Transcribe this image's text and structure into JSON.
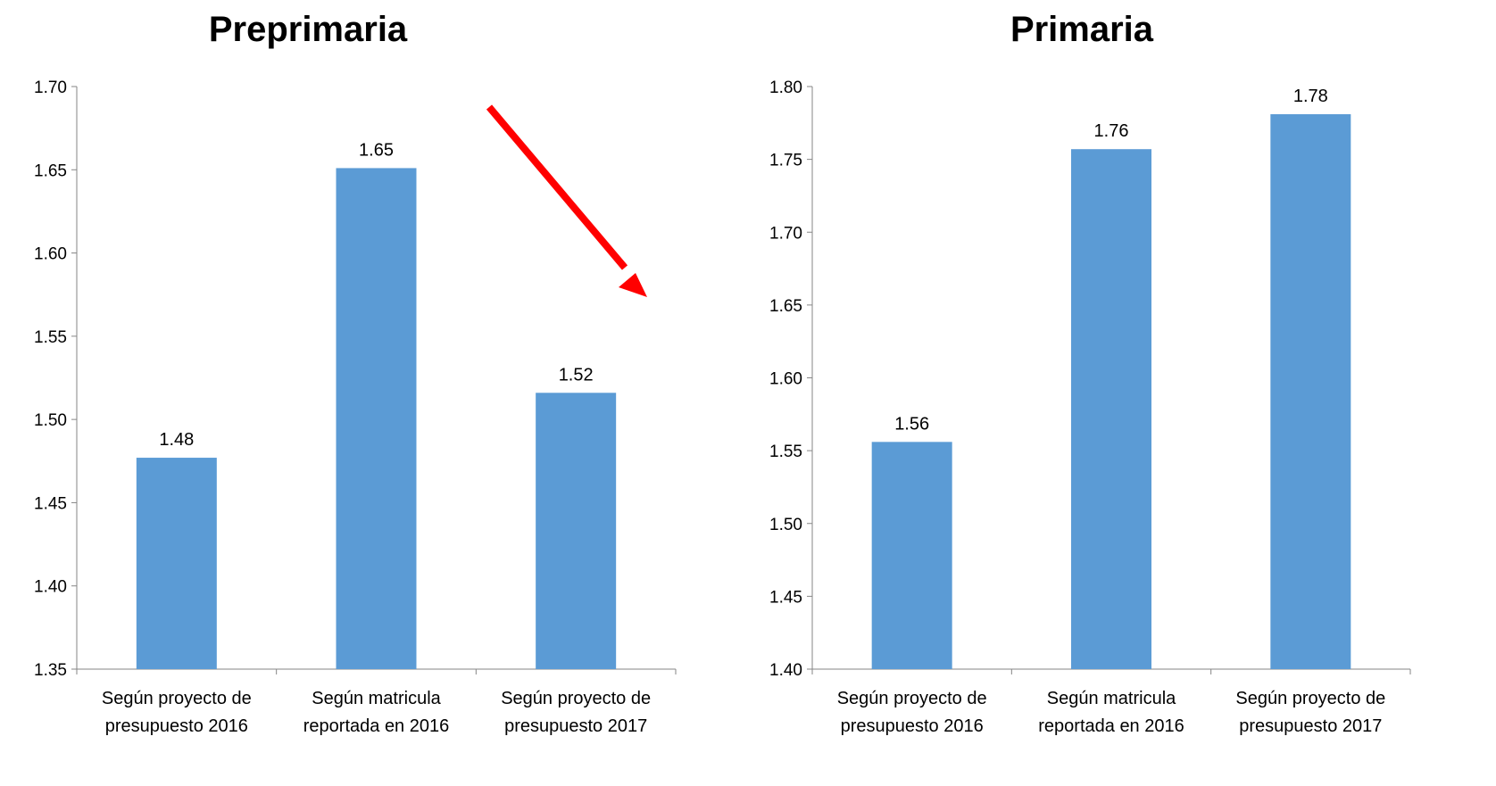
{
  "colors": {
    "bar": "#5b9bd5",
    "axis": "#868686",
    "arrow": "#ff0000"
  },
  "chart_data": [
    {
      "type": "bar",
      "title": "Preprimaria",
      "categories": [
        [
          "Según proyecto de",
          "presupuesto 2016"
        ],
        [
          "Según matricula",
          "reportada en 2016"
        ],
        [
          "Según proyecto de",
          "presupuesto 2017"
        ]
      ],
      "values": [
        1.477,
        1.651,
        1.516
      ],
      "labels": [
        "1.48",
        "1.65",
        "1.52"
      ],
      "ylim": [
        1.35,
        1.7
      ],
      "yticks": [
        "1.35",
        "1.40",
        "1.45",
        "1.50",
        "1.55",
        "1.60",
        "1.65",
        "1.70"
      ],
      "grid": false,
      "annotation": "red arrow pointing down-right"
    },
    {
      "type": "bar",
      "title": "Primaria",
      "categories": [
        [
          "Según proyecto de",
          "presupuesto 2016"
        ],
        [
          "Según matricula",
          "reportada en 2016"
        ],
        [
          "Según proyecto de",
          "presupuesto 2017"
        ]
      ],
      "values": [
        1.556,
        1.757,
        1.781
      ],
      "labels": [
        "1.56",
        "1.76",
        "1.78"
      ],
      "ylim": [
        1.4,
        1.8
      ],
      "yticks": [
        "1.40",
        "1.45",
        "1.50",
        "1.55",
        "1.60",
        "1.65",
        "1.70",
        "1.75",
        "1.80"
      ],
      "grid": false
    }
  ]
}
